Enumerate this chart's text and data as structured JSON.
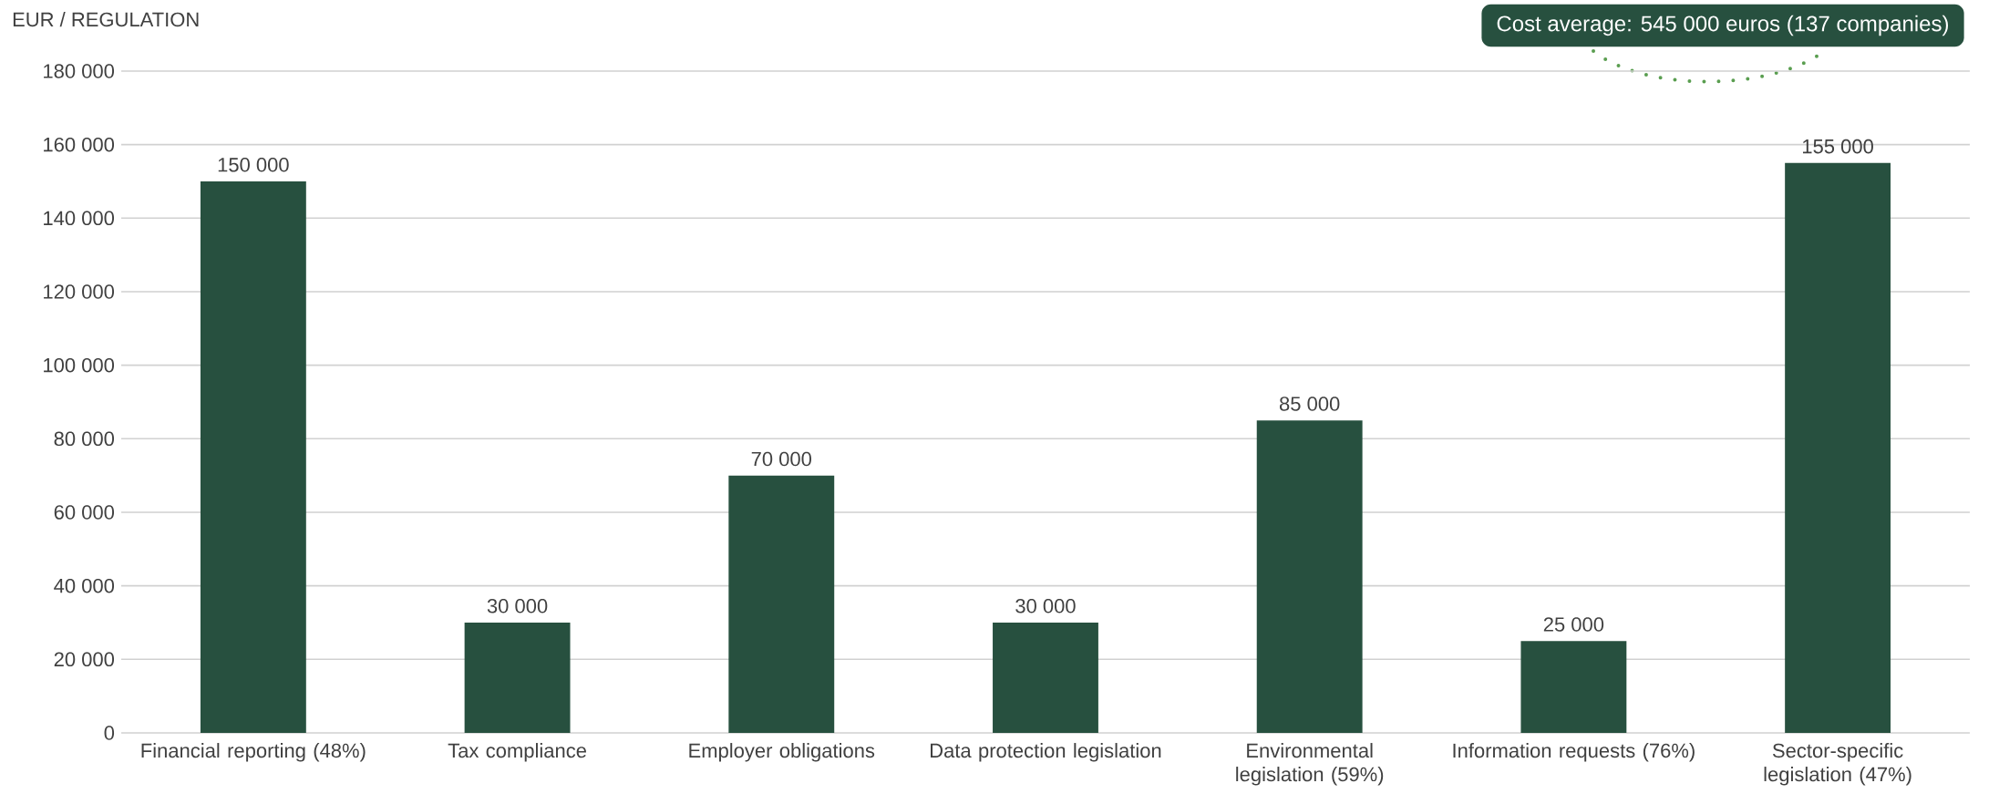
{
  "chart_data": {
    "type": "bar",
    "ylabel": "EUR / REGULATION",
    "categories": [
      "Financial reporting (48%)",
      "Tax compliance",
      "Employer obligations",
      "Data protection legislation",
      "Environmental legislation (59%)",
      "Information requests (76%)",
      "Sector-specific legislation (47%)"
    ],
    "values": [
      150000,
      30000,
      70000,
      30000,
      85000,
      25000,
      155000
    ],
    "value_labels": [
      "150 000",
      "30 000",
      "70 000",
      "30 000",
      "85 000",
      "25 000",
      "155 000"
    ],
    "color": "#27503f",
    "ylim": [
      0,
      180000
    ],
    "yticks": [
      {
        "value": 0,
        "label": "0"
      },
      {
        "value": 20000,
        "label": "20 000"
      },
      {
        "value": 40000,
        "label": "40 000"
      },
      {
        "value": 60000,
        "label": "60 000"
      },
      {
        "value": 80000,
        "label": "80 000"
      },
      {
        "value": 100000,
        "label": "100 000"
      },
      {
        "value": 120000,
        "label": "120 000"
      },
      {
        "value": 140000,
        "label": "140 000"
      },
      {
        "value": 160000,
        "label": "160 000"
      },
      {
        "value": 180000,
        "label": "180 000"
      }
    ],
    "grid": "y",
    "annotations": [
      "Cost average: 545 000 euros (137 companies)"
    ]
  }
}
